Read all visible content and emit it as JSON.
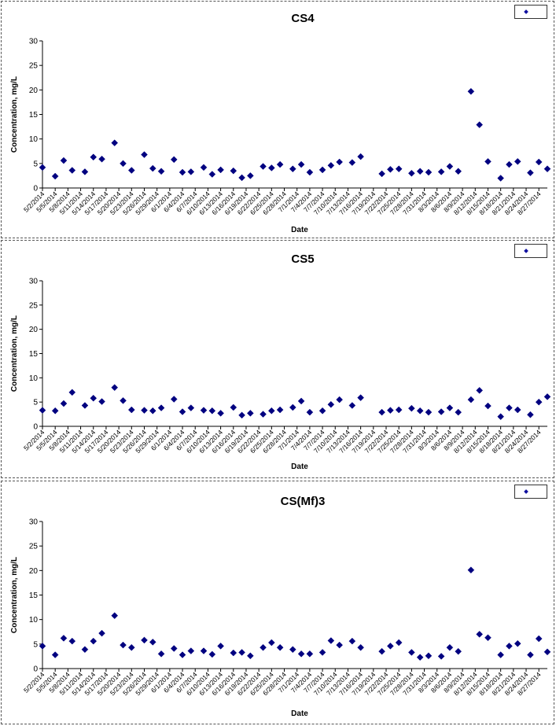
{
  "style": {
    "marker_color": "#000080",
    "axis_color": "#000000",
    "border_color": "#555555"
  },
  "chart_data": [
    {
      "type": "scatter",
      "title": "CS4",
      "xlabel": "Date",
      "ylabel": "Concentration, mg/L",
      "legend": {
        "placement": "top-right",
        "entries": [
          ""
        ]
      },
      "ylim": [
        0,
        30
      ],
      "yticks": [
        0,
        5,
        10,
        15,
        20,
        25,
        30
      ],
      "xlim": [
        "2014-05-02",
        "2014-08-29"
      ],
      "xtick_labels": [
        "5/2/2014",
        "5/5/2014",
        "5/8/2014",
        "5/11/2014",
        "5/14/2014",
        "5/17/2014",
        "5/20/2014",
        "5/23/2014",
        "5/26/2014",
        "5/29/2014",
        "6/1/2014",
        "6/4/2014",
        "6/7/2014",
        "6/10/2014",
        "6/13/2014",
        "6/16/2014",
        "6/19/2014",
        "6/22/2014",
        "6/25/2014",
        "6/28/2014",
        "7/1/2014",
        "7/4/2014",
        "7/7/2014",
        "7/10/2014",
        "7/13/2014",
        "7/16/2014",
        "7/19/2014",
        "7/22/2014",
        "7/25/2014",
        "7/28/2014",
        "7/31/2014",
        "8/3/2014",
        "8/6/2014",
        "8/9/2014",
        "8/12/2014",
        "8/15/2014",
        "8/18/2014",
        "8/21/2014",
        "8/24/2014",
        "8/27/2014"
      ],
      "x": [
        "2014-05-02",
        "2014-05-05",
        "2014-05-07",
        "2014-05-09",
        "2014-05-12",
        "2014-05-14",
        "2014-05-16",
        "2014-05-19",
        "2014-05-21",
        "2014-05-23",
        "2014-05-26",
        "2014-05-28",
        "2014-05-30",
        "2014-06-02",
        "2014-06-04",
        "2014-06-06",
        "2014-06-09",
        "2014-06-11",
        "2014-06-13",
        "2014-06-16",
        "2014-06-18",
        "2014-06-20",
        "2014-06-23",
        "2014-06-25",
        "2014-06-27",
        "2014-06-30",
        "2014-07-02",
        "2014-07-04",
        "2014-07-07",
        "2014-07-09",
        "2014-07-11",
        "2014-07-14",
        "2014-07-16",
        "2014-07-21",
        "2014-07-23",
        "2014-07-25",
        "2014-07-28",
        "2014-07-30",
        "2014-08-01",
        "2014-08-04",
        "2014-08-06",
        "2014-08-08",
        "2014-08-11",
        "2014-08-13",
        "2014-08-15",
        "2014-08-18",
        "2014-08-20",
        "2014-08-22",
        "2014-08-25",
        "2014-08-27",
        "2014-08-29"
      ],
      "y": [
        4.2,
        2.4,
        5.6,
        3.6,
        3.3,
        6.3,
        5.9,
        9.2,
        5.0,
        3.6,
        6.8,
        4.0,
        3.4,
        5.8,
        3.2,
        3.3,
        4.2,
        2.8,
        3.7,
        3.5,
        2.1,
        2.5,
        4.4,
        4.1,
        4.8,
        3.9,
        4.8,
        3.2,
        3.7,
        4.6,
        5.3,
        5.2,
        6.4,
        2.9,
        3.8,
        3.9,
        3.0,
        3.4,
        3.2,
        3.3,
        4.4,
        3.4,
        19.7,
        12.9,
        5.4,
        2.0,
        4.8,
        5.4,
        3.1,
        5.3,
        3.9
      ]
    },
    {
      "type": "scatter",
      "title": "CS5",
      "xlabel": "Date",
      "ylabel": "Concentration, mg/L",
      "legend": {
        "placement": "top-right",
        "entries": [
          ""
        ]
      },
      "ylim": [
        0,
        30
      ],
      "yticks": [
        0,
        5,
        10,
        15,
        20,
        25,
        30
      ],
      "xlim": [
        "2014-05-02",
        "2014-08-29"
      ],
      "xtick_labels": [
        "5/2/2014",
        "5/5/2014",
        "5/8/2014",
        "5/11/2014",
        "5/14/2014",
        "5/17/2014",
        "5/20/2014",
        "5/23/2014",
        "5/26/2014",
        "5/29/2014",
        "6/1/2014",
        "6/4/2014",
        "6/7/2014",
        "6/10/2014",
        "6/13/2014",
        "6/16/2014",
        "6/19/2014",
        "6/22/2014",
        "6/25/2014",
        "6/28/2014",
        "7/1/2014",
        "7/4/2014",
        "7/7/2014",
        "7/10/2014",
        "7/13/2014",
        "7/16/2014",
        "7/19/2014",
        "7/22/2014",
        "7/25/2014",
        "7/28/2014",
        "7/31/2014",
        "8/3/2014",
        "8/6/2014",
        "8/9/2014",
        "8/12/2014",
        "8/15/2014",
        "8/18/2014",
        "8/21/2014",
        "8/24/2014",
        "8/27/2014"
      ],
      "x": [
        "2014-05-02",
        "2014-05-05",
        "2014-05-07",
        "2014-05-09",
        "2014-05-12",
        "2014-05-14",
        "2014-05-16",
        "2014-05-19",
        "2014-05-21",
        "2014-05-23",
        "2014-05-26",
        "2014-05-28",
        "2014-05-30",
        "2014-06-02",
        "2014-06-04",
        "2014-06-06",
        "2014-06-09",
        "2014-06-11",
        "2014-06-13",
        "2014-06-16",
        "2014-06-18",
        "2014-06-20",
        "2014-06-23",
        "2014-06-25",
        "2014-06-27",
        "2014-06-30",
        "2014-07-02",
        "2014-07-04",
        "2014-07-07",
        "2014-07-09",
        "2014-07-11",
        "2014-07-14",
        "2014-07-16",
        "2014-07-21",
        "2014-07-23",
        "2014-07-25",
        "2014-07-28",
        "2014-07-30",
        "2014-08-01",
        "2014-08-04",
        "2014-08-06",
        "2014-08-08",
        "2014-08-11",
        "2014-08-13",
        "2014-08-15",
        "2014-08-18",
        "2014-08-20",
        "2014-08-22",
        "2014-08-25",
        "2014-08-27",
        "2014-08-29"
      ],
      "y": [
        3.3,
        3.2,
        4.7,
        7.0,
        4.3,
        5.8,
        5.1,
        8.0,
        5.3,
        3.4,
        3.3,
        3.2,
        3.8,
        5.6,
        3.0,
        3.8,
        3.3,
        3.2,
        2.7,
        3.9,
        2.3,
        2.7,
        2.5,
        3.2,
        3.4,
        3.9,
        5.2,
        2.9,
        3.2,
        4.5,
        5.5,
        4.3,
        5.9,
        2.9,
        3.3,
        3.4,
        3.7,
        3.2,
        2.9,
        3.0,
        3.8,
        2.9,
        5.5,
        7.4,
        4.2,
        2.0,
        3.8,
        3.4,
        2.4,
        5.0,
        6.1
      ]
    },
    {
      "type": "scatter",
      "title": "CS(Mf)3",
      "xlabel": "Date",
      "ylabel": "Concentration, mg/L",
      "legend": {
        "placement": "top-right",
        "entries": [
          ""
        ]
      },
      "ylim": [
        0,
        30
      ],
      "yticks": [
        0,
        5,
        10,
        15,
        20,
        25,
        30
      ],
      "xlim": [
        "2014-05-02",
        "2014-08-29"
      ],
      "xtick_labels": [
        "5/2/2014",
        "5/5/2014",
        "5/8/2014",
        "5/11/2014",
        "5/14/2014",
        "5/17/2014",
        "5/20/2014",
        "5/23/2014",
        "5/26/2014",
        "5/29/2014",
        "6/1/2014",
        "6/4/2014",
        "6/7/2014",
        "6/10/2014",
        "6/13/2014",
        "6/16/2014",
        "6/19/2014",
        "6/22/2014",
        "6/25/2014",
        "6/28/2014",
        "7/1/2014",
        "7/4/2014",
        "7/7/2014",
        "7/10/2014",
        "7/13/2014",
        "7/16/2014",
        "7/19/2014",
        "7/22/2014",
        "7/25/2014",
        "7/28/2014",
        "7/31/2014",
        "8/3/2014",
        "8/6/2014",
        "8/9/2014",
        "8/12/2014",
        "8/15/2014",
        "8/18/2014",
        "8/21/2014",
        "8/24/2014",
        "8/27/2014"
      ],
      "x": [
        "2014-05-02",
        "2014-05-05",
        "2014-05-07",
        "2014-05-09",
        "2014-05-12",
        "2014-05-14",
        "2014-05-16",
        "2014-05-19",
        "2014-05-21",
        "2014-05-23",
        "2014-05-26",
        "2014-05-28",
        "2014-05-30",
        "2014-06-02",
        "2014-06-04",
        "2014-06-06",
        "2014-06-09",
        "2014-06-11",
        "2014-06-13",
        "2014-06-16",
        "2014-06-18",
        "2014-06-20",
        "2014-06-23",
        "2014-06-25",
        "2014-06-27",
        "2014-06-30",
        "2014-07-02",
        "2014-07-04",
        "2014-07-07",
        "2014-07-09",
        "2014-07-11",
        "2014-07-14",
        "2014-07-16",
        "2014-07-21",
        "2014-07-23",
        "2014-07-25",
        "2014-07-28",
        "2014-07-30",
        "2014-08-01",
        "2014-08-04",
        "2014-08-06",
        "2014-08-08",
        "2014-08-11",
        "2014-08-13",
        "2014-08-15",
        "2014-08-18",
        "2014-08-20",
        "2014-08-22",
        "2014-08-25",
        "2014-08-27",
        "2014-08-29"
      ],
      "y": [
        4.6,
        2.8,
        6.2,
        5.6,
        3.9,
        5.6,
        7.2,
        10.8,
        4.8,
        4.3,
        5.8,
        5.4,
        3.0,
        4.1,
        2.8,
        3.6,
        3.6,
        2.9,
        4.6,
        3.2,
        3.3,
        2.6,
        4.3,
        5.3,
        4.3,
        3.9,
        3.0,
        3.0,
        3.3,
        5.7,
        4.8,
        5.6,
        4.3,
        3.5,
        4.6,
        5.3,
        3.3,
        2.3,
        2.6,
        2.5,
        4.3,
        3.5,
        20.1,
        7.0,
        6.3,
        2.8,
        4.6,
        5.1,
        2.8,
        6.1,
        3.4
      ]
    }
  ]
}
